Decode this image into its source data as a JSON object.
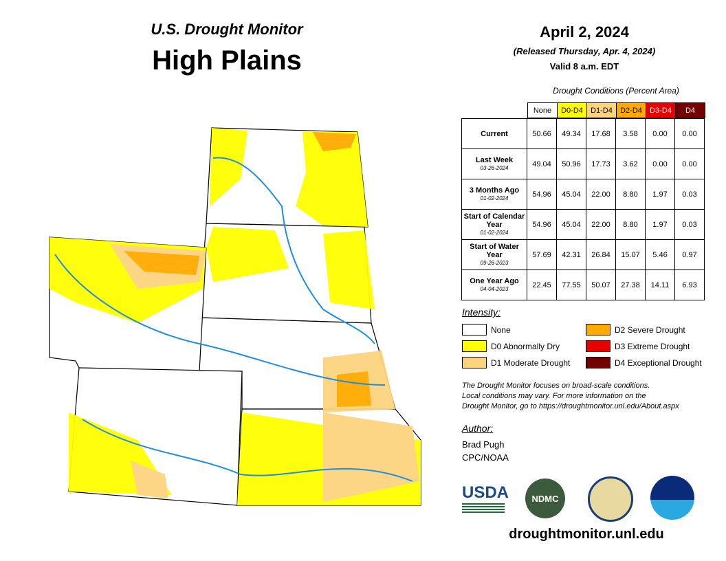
{
  "header": {
    "title": "U.S. Drought Monitor",
    "region": "High Plains",
    "date": "April 2, 2024",
    "released": "(Released Thursday, Apr. 4, 2024)",
    "valid": "Valid 8 a.m. EDT"
  },
  "table": {
    "caption": "Drought Conditions (Percent Area)",
    "columns": [
      {
        "label": "None",
        "color": "#ffffff",
        "text": "#000000"
      },
      {
        "label": "D0-D4",
        "color": "#ffff00",
        "text": "#000000"
      },
      {
        "label": "D1-D4",
        "color": "#fcd37f",
        "text": "#000000"
      },
      {
        "label": "D2-D4",
        "color": "#ffaa00",
        "text": "#000000"
      },
      {
        "label": "D3-D4",
        "color": "#e60000",
        "text": "#ffffff"
      },
      {
        "label": "D4",
        "color": "#730000",
        "text": "#ffffff"
      }
    ],
    "rows": [
      {
        "label": "Current",
        "values": [
          "50.66",
          "49.34",
          "17.68",
          "3.58",
          "0.00",
          "0.00"
        ]
      },
      {
        "label": "Last Week",
        "date": "03-26-2024",
        "values": [
          "49.04",
          "50.96",
          "17.73",
          "3.62",
          "0.00",
          "0.00"
        ]
      },
      {
        "label": "3 Months Ago",
        "date": "01-02-2024",
        "values": [
          "54.96",
          "45.04",
          "22.00",
          "8.80",
          "1.97",
          "0.03"
        ]
      },
      {
        "label": "Start of Calendar Year",
        "date": "01-02-2024",
        "values": [
          "54.96",
          "45.04",
          "22.00",
          "8.80",
          "1.97",
          "0.03"
        ]
      },
      {
        "label": "Start of Water Year",
        "date": "09-26-2023",
        "values": [
          "57.69",
          "42.31",
          "26.84",
          "15.07",
          "5.46",
          "0.97"
        ]
      },
      {
        "label": "One Year Ago",
        "date": "04-04-2023",
        "values": [
          "22.45",
          "77.55",
          "50.07",
          "27.38",
          "14.11",
          "6.93"
        ]
      }
    ]
  },
  "legend": {
    "title": "Intensity:",
    "items": [
      {
        "label": "None",
        "color": "#ffffff"
      },
      {
        "label": "D0 Abnormally Dry",
        "color": "#ffff00"
      },
      {
        "label": "D1 Moderate Drought",
        "color": "#fcd37f"
      },
      {
        "label": "D2 Severe Drought",
        "color": "#ffaa00"
      },
      {
        "label": "D3 Extreme Drought",
        "color": "#e60000"
      },
      {
        "label": "D4 Exceptional Drought",
        "color": "#730000"
      }
    ]
  },
  "note": [
    "The Drought Monitor focuses on broad-scale conditions.",
    "Local conditions may vary. For more information on the",
    "Drought Monitor, go to https://droughtmonitor.unl.edu/About.aspx"
  ],
  "author": {
    "heading": "Author:",
    "lines": [
      "Brad Pugh",
      "CPC/NOAA"
    ]
  },
  "logos": [
    "USDA",
    "NDMC"
  ],
  "footer": "droughtmonitor.unl.edu"
}
